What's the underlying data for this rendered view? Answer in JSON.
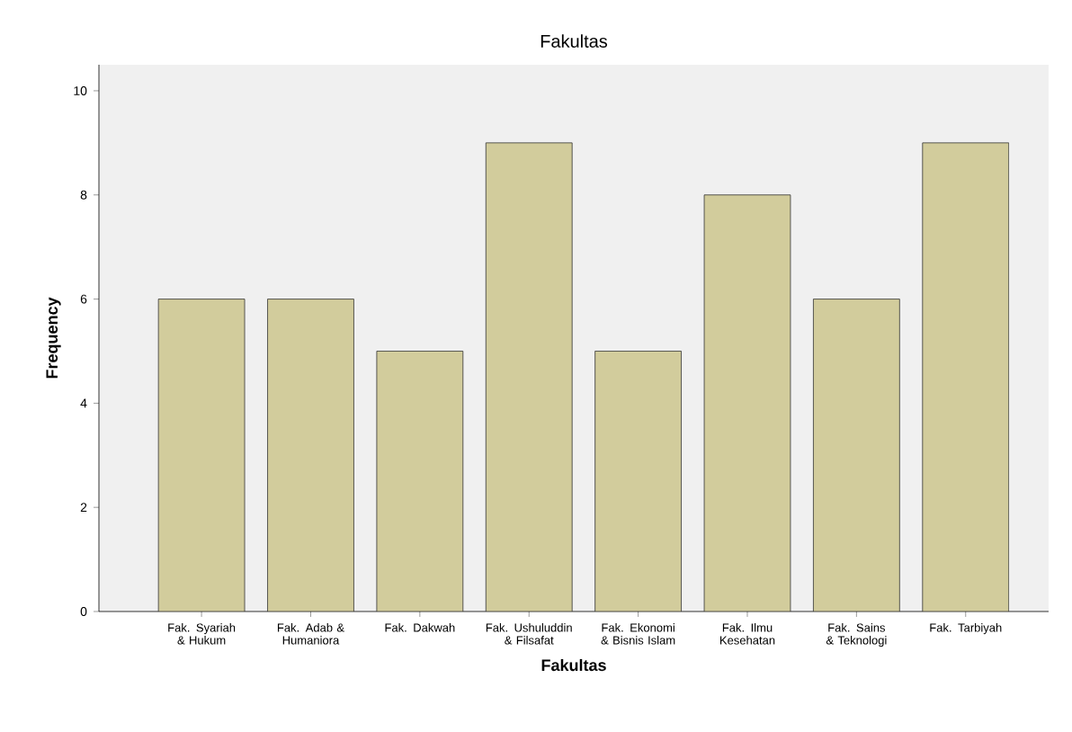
{
  "chart_data": {
    "type": "bar",
    "title": "Fakultas",
    "xlabel": "Fakultas",
    "ylabel": "Frequency",
    "categories": [
      "Fak. Syariah & Hukum",
      "Fak. Adab & Humaniora",
      "Fak. Dakwah",
      "Fak. Ushuluddin & Filsafat",
      "Fak. Ekonomi & Bisnis Islam",
      "Fak. Ilmu Kesehatan",
      "Fak. Sains & Teknologi",
      "Fak. Tarbiyah"
    ],
    "values": [
      6,
      6,
      5,
      9,
      5,
      8,
      6,
      9
    ],
    "color": "#d2cc9c",
    "ylim": [
      0,
      10.5
    ],
    "yticks": [
      0,
      2,
      4,
      6,
      8,
      10
    ]
  }
}
